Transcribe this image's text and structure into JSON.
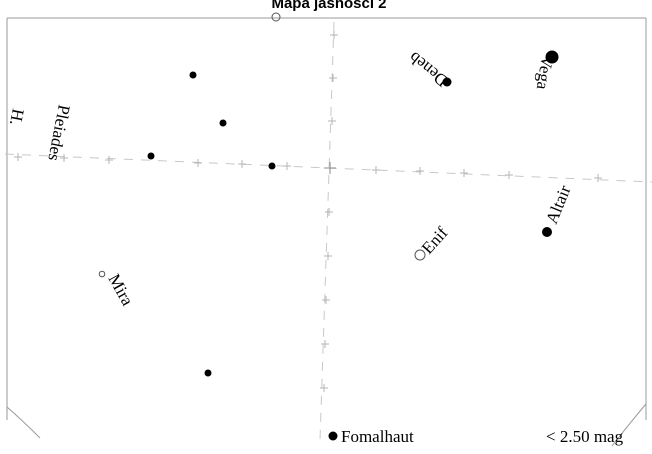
{
  "title": "Mapa jasności 2",
  "magnitude_limit": "< 2.50 mag",
  "labels": {
    "vega": "Vega",
    "deneb": "Deneb",
    "pleiades": "Pleiades",
    "h_partial": "H.",
    "altair": "Altair",
    "enif": "Enif",
    "mira": "Mira",
    "fomalhaut": "Fomalhaut"
  },
  "colors": {
    "ink": "#000000",
    "grid": "#c8c8c8",
    "border": "#9a9a9a"
  }
}
